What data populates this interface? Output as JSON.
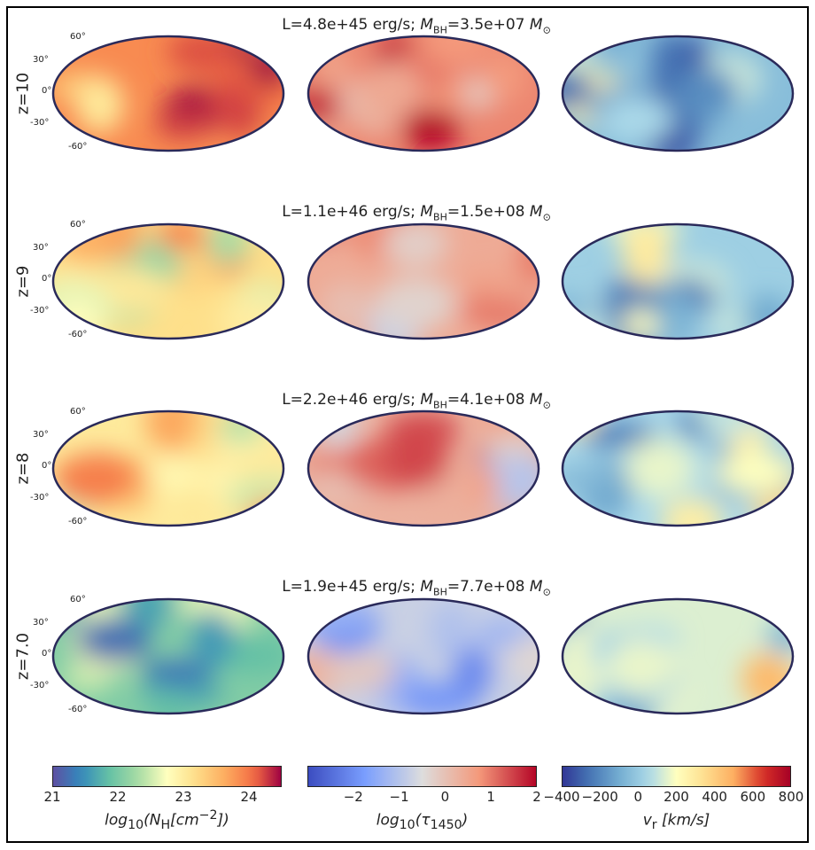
{
  "chart_data": {
    "type": "heatmap",
    "projection": "mollweide",
    "layout": "4 rows x 3 columns of all-sky maps with shared colorbars",
    "columns": [
      {
        "quantity": "log10(N_H [cm^-2])",
        "colormap": "Spectral_r",
        "range": [
          21,
          24.5
        ]
      },
      {
        "quantity": "log10(tau_1450)",
        "colormap": "coolwarm",
        "range": [
          -3,
          2
        ]
      },
      {
        "quantity": "v_r [km/s]",
        "colormap": "RdYlBu_r",
        "range": [
          -400,
          800
        ]
      }
    ],
    "rows": [
      {
        "redshift": "z=10",
        "L": "4.8e+45",
        "MBH": "3.5e+07",
        "col_levels": [
          0.82,
          0.78,
          0.3
        ]
      },
      {
        "redshift": "z=9",
        "L": "1.1e+46",
        "MBH": "1.5e+08",
        "col_levels": [
          0.62,
          0.68,
          0.35
        ]
      },
      {
        "redshift": "z=8",
        "L": "2.2e+46",
        "MBH": "4.1e+08",
        "col_levels": [
          0.58,
          0.66,
          0.38
        ]
      },
      {
        "redshift": "z=7.0",
        "L": "1.9e+45",
        "MBH": "7.7e+08",
        "col_levels": [
          0.3,
          0.45,
          0.45
        ]
      }
    ],
    "latitude_ticks": [
      "60°",
      "30°",
      "0°",
      "-30°",
      "-60°"
    ],
    "colorbar_ticks": [
      [
        "21",
        "22",
        "23",
        "24"
      ],
      [
        "−2",
        "−1",
        "0",
        "1",
        "2"
      ],
      [
        "−400",
        "−200",
        "0",
        "200",
        "400",
        "600",
        "800"
      ]
    ],
    "colorbar_tick_values": [
      [
        21,
        22,
        23,
        24
      ],
      [
        -2,
        -1,
        0,
        1,
        2
      ],
      [
        -400,
        -200,
        0,
        200,
        400,
        600,
        800
      ]
    ]
  },
  "titles": [
    {
      "pre": "L=4.8e+45 erg/s; ",
      "m": "M",
      "msub": "BH",
      "mid": "=3.5e+07 ",
      "m2": "M",
      "m2sub": "⊙"
    },
    {
      "pre": "L=1.1e+46 erg/s; ",
      "m": "M",
      "msub": "BH",
      "mid": "=1.5e+08 ",
      "m2": "M",
      "m2sub": "⊙"
    },
    {
      "pre": "L=2.2e+46 erg/s; ",
      "m": "M",
      "msub": "BH",
      "mid": "=4.1e+08 ",
      "m2": "M",
      "m2sub": "⊙"
    },
    {
      "pre": "L=1.9e+45 erg/s; ",
      "m": "M",
      "msub": "BH",
      "mid": "=7.7e+08 ",
      "m2": "M",
      "m2sub": "⊙"
    }
  ],
  "zlabels": [
    "z=10",
    "z=9",
    "z=8",
    "z=7.0"
  ],
  "colorbar_labels": [
    {
      "pre": "log",
      "sub": "10",
      "post": "(N",
      "sub2": "H",
      "post2": "[cm",
      "sup": "−2",
      "end": "])"
    },
    {
      "pre": "log",
      "sub": "10",
      "post": "(τ",
      "sub2": "1450",
      "post2": ")",
      "sup": "",
      "end": ""
    },
    {
      "pre": "v",
      "sub": "r",
      "post": " [km/s]",
      "sub2": "",
      "post2": "",
      "sup": "",
      "end": ""
    }
  ]
}
